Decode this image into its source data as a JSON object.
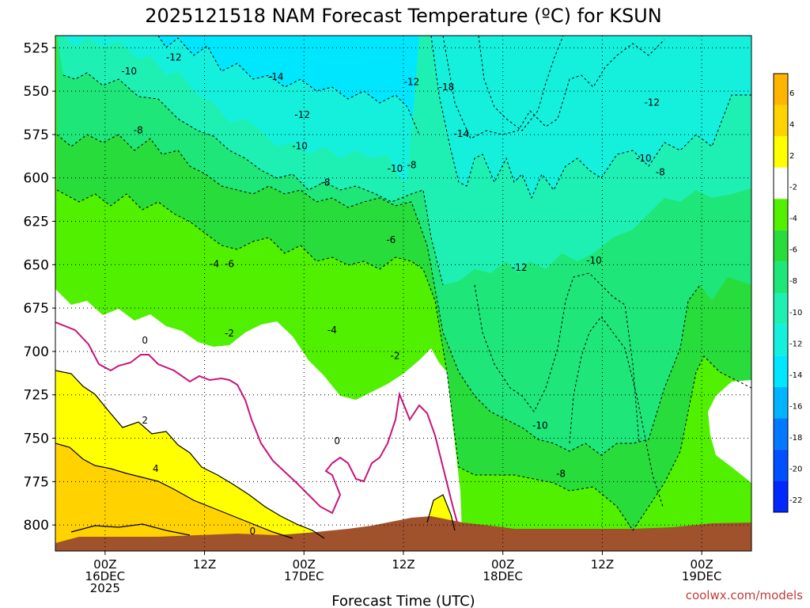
{
  "chart_data": {
    "type": "heatmap",
    "title": "2025121518 NAM Forecast Temperature (ºC) for KSUN",
    "xlabel": "Forecast Time (UTC)",
    "ylabel": "",
    "y_ticks": [
      "525",
      "550",
      "575",
      "600",
      "625",
      "650",
      "675",
      "700",
      "725",
      "750",
      "775",
      "800"
    ],
    "ylim": [
      815,
      518
    ],
    "x_ticks": [
      {
        "line1": "00Z",
        "line2": "16DEC",
        "line3": "2025"
      },
      {
        "line1": "12Z",
        "line2": "",
        "line3": ""
      },
      {
        "line1": "00Z",
        "line2": "17DEC",
        "line3": ""
      },
      {
        "line1": "12Z",
        "line2": "",
        "line3": ""
      },
      {
        "line1": "00Z",
        "line2": "18DEC",
        "line3": ""
      },
      {
        "line1": "12Z",
        "line2": "",
        "line3": ""
      },
      {
        "line1": "00Z",
        "line2": "19DEC",
        "line3": ""
      }
    ],
    "xlim_hours": [
      -6,
      78
    ],
    "colorbar": {
      "labels": [
        "6",
        "4",
        "2",
        "-2",
        "-4",
        "-6",
        "-8",
        "-10",
        "-12",
        "-14",
        "-16",
        "-18",
        "-20",
        "-22"
      ],
      "colors": [
        "#ffb400",
        "#ffd200",
        "#ffff00",
        "#ffffff",
        "#50f000",
        "#28dc3c",
        "#1ee678",
        "#1ef0b4",
        "#14f0dc",
        "#00e6ff",
        "#00b4ff",
        "#0078ff",
        "#0050ff",
        "#0028ff"
      ]
    },
    "contour_labels": [
      {
        "t": "-12",
        "h": 8.3,
        "p": 532
      },
      {
        "t": "-10",
        "h": 2.9,
        "p": 540
      },
      {
        "t": "-8",
        "h": 4.0,
        "p": 574
      },
      {
        "t": "-14",
        "h": 20.6,
        "p": 543
      },
      {
        "t": "-12",
        "h": 23.8,
        "p": 565
      },
      {
        "t": "-10",
        "h": 23.5,
        "p": 583
      },
      {
        "t": "-8",
        "h": 26.6,
        "p": 604
      },
      {
        "t": "-4",
        "h": 13.2,
        "p": 651
      },
      {
        "t": "-6",
        "h": 15.0,
        "p": 651
      },
      {
        "t": "-2",
        "h": 15.0,
        "p": 691
      },
      {
        "t": "0",
        "h": 4.8,
        "p": 695
      },
      {
        "t": "2",
        "h": 4.8,
        "p": 741
      },
      {
        "t": "4",
        "h": 6.1,
        "p": 769
      },
      {
        "t": "0",
        "h": 17.8,
        "p": 805
      },
      {
        "t": "-4",
        "h": 27.4,
        "p": 689
      },
      {
        "t": "-6",
        "h": 34.5,
        "p": 637
      },
      {
        "t": "-10",
        "h": 35.0,
        "p": 596
      },
      {
        "t": "-8",
        "h": 37.0,
        "p": 594
      },
      {
        "t": "-12",
        "h": 37.0,
        "p": 546
      },
      {
        "t": "-18",
        "h": 41.2,
        "p": 549
      },
      {
        "t": "-14",
        "h": 43.0,
        "p": 576
      },
      {
        "t": "-2",
        "h": 35.0,
        "p": 704
      },
      {
        "t": "0",
        "h": 28.0,
        "p": 753
      },
      {
        "t": "-12",
        "h": 50.0,
        "p": 653
      },
      {
        "t": "-10",
        "h": 59.0,
        "p": 649
      },
      {
        "t": "-12",
        "h": 66.0,
        "p": 558
      },
      {
        "t": "-10",
        "h": 65.0,
        "p": 590
      },
      {
        "t": "-8",
        "h": 67.0,
        "p": 598
      },
      {
        "t": "-10",
        "h": 52.5,
        "p": 744
      },
      {
        "t": "-8",
        "h": 55.0,
        "p": 772
      }
    ]
  },
  "watermark": "coolwx.com/models"
}
